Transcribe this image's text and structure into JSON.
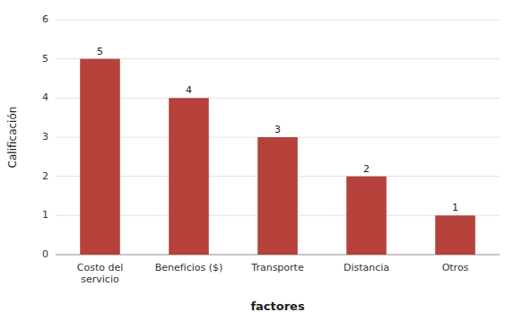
{
  "chart_data": {
    "type": "bar",
    "categories": [
      "Costo del\nservicio",
      "Beneficios ($)",
      "Transporte",
      "Distancia",
      "Otros"
    ],
    "values": [
      5,
      4,
      3,
      2,
      1
    ],
    "color": "#b5413a",
    "xlabel": "factores",
    "ylabel": "Calificación",
    "ylim": [
      0,
      6
    ],
    "yticks": [
      0,
      1,
      2,
      3,
      4,
      5,
      6
    ],
    "grid": true,
    "data_labels": true
  }
}
